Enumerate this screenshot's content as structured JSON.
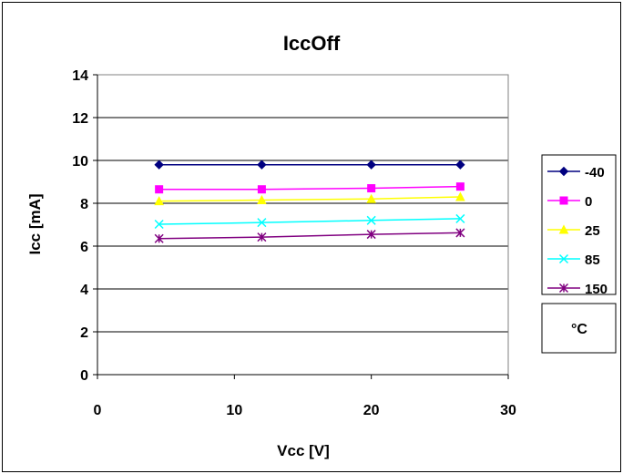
{
  "chart_data": {
    "type": "line",
    "title": "IccOff",
    "xlabel": "Vcc [V]",
    "ylabel": "Icc [mA]",
    "xlim": [
      0,
      30
    ],
    "ylim": [
      0,
      14
    ],
    "x_ticks": [
      0,
      10,
      20,
      30
    ],
    "y_ticks": [
      0,
      2,
      4,
      6,
      8,
      10,
      12,
      14
    ],
    "grid": "horizontal",
    "legend_position": "right",
    "legend_unit": "°C",
    "x": [
      4.5,
      12,
      20,
      26.5
    ],
    "series": [
      {
        "name": "-40",
        "color": "#000080",
        "marker": "diamond",
        "values": [
          9.8,
          9.8,
          9.8,
          9.8
        ]
      },
      {
        "name": "0",
        "color": "#ff00ff",
        "marker": "square",
        "values": [
          8.65,
          8.65,
          8.7,
          8.78
        ]
      },
      {
        "name": "25",
        "color": "#ffff00",
        "marker": "triangle",
        "values": [
          8.1,
          8.15,
          8.2,
          8.3
        ]
      },
      {
        "name": "85",
        "color": "#00ffff",
        "marker": "x",
        "values": [
          7.02,
          7.1,
          7.2,
          7.28
        ]
      },
      {
        "name": "150",
        "color": "#800080",
        "marker": "star",
        "values": [
          6.35,
          6.42,
          6.55,
          6.62
        ]
      }
    ]
  }
}
